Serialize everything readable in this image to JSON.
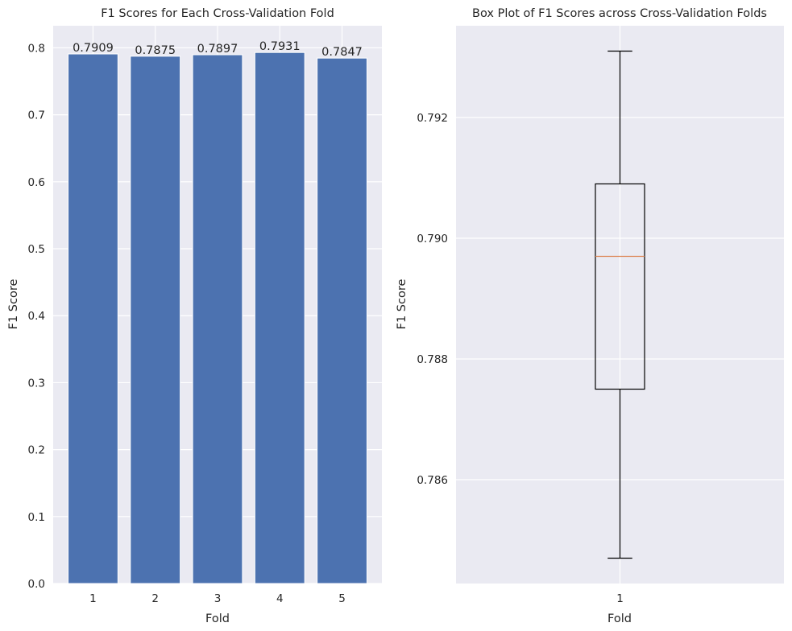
{
  "chart_data": [
    {
      "type": "bar",
      "title": "F1 Scores for Each Cross-Validation Fold",
      "xlabel": "Fold",
      "ylabel": "F1 Score",
      "categories": [
        "1",
        "2",
        "3",
        "4",
        "5"
      ],
      "values": [
        0.7909,
        0.7875,
        0.7897,
        0.7931,
        0.7847
      ],
      "value_labels": [
        "0.7909",
        "0.7875",
        "0.7897",
        "0.7931",
        "0.7847"
      ],
      "ylim": [
        0,
        0.833
      ],
      "yticks": [
        0.0,
        0.1,
        0.2,
        0.3,
        0.4,
        0.5,
        0.6,
        0.7,
        0.8
      ],
      "ytick_labels": [
        "0.0",
        "0.1",
        "0.2",
        "0.3",
        "0.4",
        "0.5",
        "0.6",
        "0.7",
        "0.8"
      ],
      "grid": true,
      "colors": {
        "bar": "#4c72b0",
        "background": "#eaeaf2",
        "grid": "#ffffff"
      }
    },
    {
      "type": "box",
      "title": "Box Plot of F1 Scores across Cross-Validation Folds",
      "xlabel": "Fold",
      "ylabel": "F1 Score",
      "categories": [
        "1"
      ],
      "box": {
        "whislo": 0.7847,
        "q1": 0.7875,
        "median": 0.7897,
        "q3": 0.7909,
        "whishi": 0.7931
      },
      "ylim": [
        0.78428,
        0.79352
      ],
      "yticks": [
        0.786,
        0.788,
        0.79,
        0.792
      ],
      "ytick_labels": [
        "0.786",
        "0.788",
        "0.790",
        "0.792"
      ],
      "grid": true,
      "colors": {
        "box": "#000000",
        "median": "#dd8452",
        "background": "#eaeaf2",
        "grid": "#ffffff"
      }
    }
  ]
}
